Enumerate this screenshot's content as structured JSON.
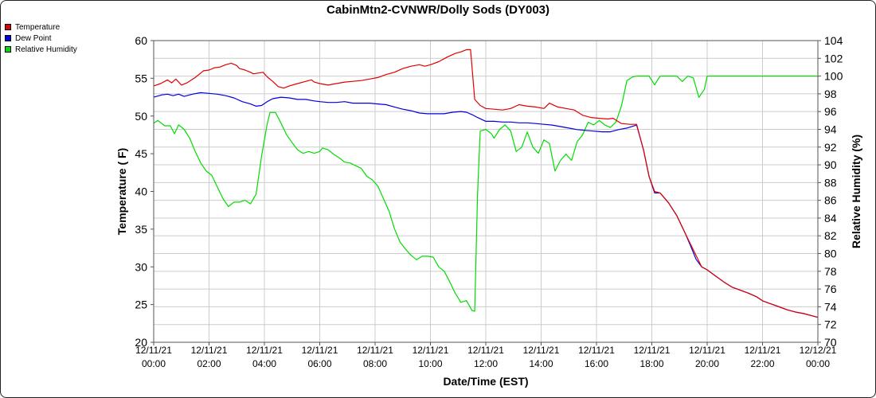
{
  "chart_data": {
    "type": "line",
    "title": "CabinMtn2-CVNWR/Dolly Sods (DY003)",
    "xlabel": "Date/Time (EST)",
    "ylabel": "Temperature ( F)",
    "y2label": "Relative Humidity (%)",
    "xlim": [
      0,
      24
    ],
    "ylim": [
      20,
      60
    ],
    "y2lim": [
      70,
      104
    ],
    "yticks": [
      "20",
      "25",
      "30",
      "35",
      "40",
      "45",
      "50",
      "55",
      "60"
    ],
    "y2ticks": [
      "70",
      "72",
      "74",
      "76",
      "78",
      "80",
      "82",
      "84",
      "86",
      "88",
      "90",
      "92",
      "94",
      "96",
      "98",
      "100",
      "102",
      "104"
    ],
    "xtick_values": [
      0,
      2,
      4,
      6,
      8,
      10,
      12,
      14,
      16,
      18,
      20,
      22,
      24
    ],
    "xticks": [
      {
        "date": "12/11/21",
        "time": "00:00"
      },
      {
        "date": "12/11/21",
        "time": "02:00"
      },
      {
        "date": "12/11/21",
        "time": "04:00"
      },
      {
        "date": "12/11/21",
        "time": "06:00"
      },
      {
        "date": "12/11/21",
        "time": "08:00"
      },
      {
        "date": "12/11/21",
        "time": "10:00"
      },
      {
        "date": "12/11/21",
        "time": "12:00"
      },
      {
        "date": "12/11/21",
        "time": "14:00"
      },
      {
        "date": "12/11/21",
        "time": "16:00"
      },
      {
        "date": "12/11/21",
        "time": "18:00"
      },
      {
        "date": "12/11/21",
        "time": "20:00"
      },
      {
        "date": "12/11/21",
        "time": "22:00"
      },
      {
        "date": "12/12/21",
        "time": "00:00"
      }
    ],
    "grid": true,
    "legend": "top-left",
    "series": [
      {
        "name": "Temperature",
        "color": "#e00000",
        "axis": "left",
        "points": [
          [
            0,
            54.0
          ],
          [
            0.25,
            54.3
          ],
          [
            0.5,
            54.8
          ],
          [
            0.65,
            54.4
          ],
          [
            0.8,
            54.9
          ],
          [
            1.0,
            54.1
          ],
          [
            1.2,
            54.4
          ],
          [
            1.5,
            55.1
          ],
          [
            1.8,
            56.0
          ],
          [
            2.0,
            56.1
          ],
          [
            2.2,
            56.4
          ],
          [
            2.4,
            56.5
          ],
          [
            2.6,
            56.8
          ],
          [
            2.8,
            57.0
          ],
          [
            3.0,
            56.7
          ],
          [
            3.1,
            56.3
          ],
          [
            3.3,
            56.1
          ],
          [
            3.5,
            55.8
          ],
          [
            3.6,
            55.6
          ],
          [
            3.8,
            55.7
          ],
          [
            3.95,
            55.8
          ],
          [
            4.1,
            55.2
          ],
          [
            4.3,
            54.6
          ],
          [
            4.5,
            53.9
          ],
          [
            4.7,
            53.7
          ],
          [
            4.9,
            54.0
          ],
          [
            5.2,
            54.3
          ],
          [
            5.5,
            54.6
          ],
          [
            5.7,
            54.8
          ],
          [
            5.8,
            54.5
          ],
          [
            6.0,
            54.3
          ],
          [
            6.3,
            54.1
          ],
          [
            6.6,
            54.3
          ],
          [
            6.9,
            54.5
          ],
          [
            7.2,
            54.6
          ],
          [
            7.5,
            54.7
          ],
          [
            7.8,
            54.9
          ],
          [
            8.1,
            55.1
          ],
          [
            8.4,
            55.5
          ],
          [
            8.7,
            55.8
          ],
          [
            9.0,
            56.3
          ],
          [
            9.3,
            56.6
          ],
          [
            9.6,
            56.8
          ],
          [
            9.8,
            56.6
          ],
          [
            10.0,
            56.8
          ],
          [
            10.3,
            57.2
          ],
          [
            10.6,
            57.8
          ],
          [
            10.9,
            58.3
          ],
          [
            11.1,
            58.5
          ],
          [
            11.3,
            58.8
          ],
          [
            11.45,
            58.8
          ],
          [
            11.6,
            52.2
          ],
          [
            11.8,
            51.4
          ],
          [
            12.0,
            51.0
          ],
          [
            12.3,
            50.9
          ],
          [
            12.6,
            50.8
          ],
          [
            12.9,
            51.0
          ],
          [
            13.2,
            51.5
          ],
          [
            13.5,
            51.3
          ],
          [
            13.8,
            51.2
          ],
          [
            14.1,
            51.0
          ],
          [
            14.3,
            51.7
          ],
          [
            14.6,
            51.2
          ],
          [
            14.9,
            51.0
          ],
          [
            15.2,
            50.8
          ],
          [
            15.5,
            50.1
          ],
          [
            15.8,
            49.8
          ],
          [
            16.1,
            49.7
          ],
          [
            16.4,
            49.6
          ],
          [
            16.6,
            49.7
          ],
          [
            16.9,
            49.0
          ],
          [
            17.2,
            48.9
          ],
          [
            17.45,
            48.9
          ],
          [
            17.7,
            45.5
          ],
          [
            17.9,
            42.0
          ],
          [
            18.1,
            40.0
          ],
          [
            18.3,
            39.8
          ],
          [
            18.6,
            38.5
          ],
          [
            18.9,
            36.8
          ],
          [
            19.2,
            34.5
          ],
          [
            19.4,
            33.0
          ],
          [
            19.6,
            31.5
          ],
          [
            19.8,
            30.0
          ],
          [
            20.0,
            29.6
          ],
          [
            20.3,
            28.8
          ],
          [
            20.6,
            28.0
          ],
          [
            20.9,
            27.3
          ],
          [
            21.2,
            26.9
          ],
          [
            21.5,
            26.5
          ],
          [
            21.8,
            26.0
          ],
          [
            22.0,
            25.5
          ],
          [
            22.3,
            25.1
          ],
          [
            22.6,
            24.7
          ],
          [
            22.9,
            24.3
          ],
          [
            23.2,
            24.0
          ],
          [
            23.5,
            23.8
          ],
          [
            23.8,
            23.5
          ],
          [
            24.0,
            23.3
          ]
        ]
      },
      {
        "name": "Dew Point",
        "color": "#0000dd",
        "axis": "left",
        "points": [
          [
            0,
            52.5
          ],
          [
            0.3,
            52.8
          ],
          [
            0.5,
            52.9
          ],
          [
            0.7,
            52.7
          ],
          [
            0.9,
            52.9
          ],
          [
            1.1,
            52.6
          ],
          [
            1.4,
            52.9
          ],
          [
            1.7,
            53.1
          ],
          [
            2.0,
            53.0
          ],
          [
            2.3,
            52.9
          ],
          [
            2.6,
            52.7
          ],
          [
            2.9,
            52.4
          ],
          [
            3.2,
            51.9
          ],
          [
            3.5,
            51.6
          ],
          [
            3.7,
            51.3
          ],
          [
            3.9,
            51.4
          ],
          [
            4.1,
            51.9
          ],
          [
            4.3,
            52.3
          ],
          [
            4.6,
            52.5
          ],
          [
            4.9,
            52.4
          ],
          [
            5.2,
            52.2
          ],
          [
            5.5,
            52.2
          ],
          [
            5.8,
            52.0
          ],
          [
            6.0,
            51.9
          ],
          [
            6.3,
            51.8
          ],
          [
            6.6,
            51.8
          ],
          [
            6.9,
            51.9
          ],
          [
            7.2,
            51.7
          ],
          [
            7.5,
            51.7
          ],
          [
            7.8,
            51.7
          ],
          [
            8.1,
            51.6
          ],
          [
            8.4,
            51.5
          ],
          [
            8.7,
            51.2
          ],
          [
            9.0,
            50.9
          ],
          [
            9.3,
            50.7
          ],
          [
            9.6,
            50.4
          ],
          [
            9.9,
            50.3
          ],
          [
            10.2,
            50.3
          ],
          [
            10.5,
            50.3
          ],
          [
            10.8,
            50.5
          ],
          [
            11.1,
            50.6
          ],
          [
            11.3,
            50.5
          ],
          [
            11.5,
            50.2
          ],
          [
            11.7,
            49.8
          ],
          [
            12.0,
            49.3
          ],
          [
            12.3,
            49.3
          ],
          [
            12.6,
            49.2
          ],
          [
            12.9,
            49.2
          ],
          [
            13.2,
            49.1
          ],
          [
            13.5,
            49.1
          ],
          [
            13.8,
            49.0
          ],
          [
            14.1,
            48.9
          ],
          [
            14.4,
            48.8
          ],
          [
            14.7,
            48.6
          ],
          [
            15.0,
            48.4
          ],
          [
            15.3,
            48.2
          ],
          [
            15.6,
            48.1
          ],
          [
            15.9,
            48.0
          ],
          [
            16.2,
            47.9
          ],
          [
            16.5,
            47.9
          ],
          [
            16.8,
            48.2
          ],
          [
            17.1,
            48.4
          ],
          [
            17.45,
            48.8
          ],
          [
            17.7,
            45.5
          ],
          [
            17.9,
            42.0
          ],
          [
            18.1,
            39.8
          ],
          [
            18.3,
            39.8
          ],
          [
            18.6,
            38.5
          ],
          [
            18.9,
            36.8
          ],
          [
            19.2,
            34.5
          ],
          [
            19.4,
            32.8
          ],
          [
            19.6,
            31.0
          ],
          [
            19.8,
            30.0
          ],
          [
            20.0,
            29.6
          ],
          [
            20.3,
            28.8
          ],
          [
            20.6,
            28.0
          ],
          [
            20.9,
            27.3
          ],
          [
            21.2,
            26.9
          ],
          [
            21.5,
            26.5
          ],
          [
            21.8,
            26.0
          ],
          [
            22.0,
            25.5
          ],
          [
            22.3,
            25.1
          ],
          [
            22.6,
            24.7
          ],
          [
            22.9,
            24.3
          ],
          [
            23.2,
            24.0
          ],
          [
            23.5,
            23.8
          ],
          [
            23.8,
            23.5
          ],
          [
            24.0,
            23.3
          ]
        ]
      },
      {
        "name": "Relative Humidity",
        "color": "#00dd00",
        "axis": "right",
        "points": [
          [
            0,
            94.7
          ],
          [
            0.15,
            95.0
          ],
          [
            0.4,
            94.4
          ],
          [
            0.6,
            94.4
          ],
          [
            0.75,
            93.5
          ],
          [
            0.9,
            94.5
          ],
          [
            1.1,
            94.0
          ],
          [
            1.3,
            93.0
          ],
          [
            1.5,
            91.5
          ],
          [
            1.7,
            90.2
          ],
          [
            1.9,
            89.3
          ],
          [
            2.1,
            88.8
          ],
          [
            2.3,
            87.5
          ],
          [
            2.5,
            86.2
          ],
          [
            2.7,
            85.3
          ],
          [
            2.9,
            85.8
          ],
          [
            3.1,
            85.8
          ],
          [
            3.3,
            86.0
          ],
          [
            3.5,
            85.6
          ],
          [
            3.7,
            86.7
          ],
          [
            3.9,
            91.0
          ],
          [
            4.1,
            94.6
          ],
          [
            4.2,
            95.9
          ],
          [
            4.4,
            95.9
          ],
          [
            4.6,
            94.7
          ],
          [
            4.8,
            93.4
          ],
          [
            5.0,
            92.5
          ],
          [
            5.2,
            91.7
          ],
          [
            5.4,
            91.3
          ],
          [
            5.6,
            91.5
          ],
          [
            5.8,
            91.3
          ],
          [
            6.0,
            91.5
          ],
          [
            6.1,
            91.9
          ],
          [
            6.3,
            91.7
          ],
          [
            6.5,
            91.2
          ],
          [
            6.7,
            90.8
          ],
          [
            6.9,
            90.3
          ],
          [
            7.1,
            90.2
          ],
          [
            7.3,
            89.9
          ],
          [
            7.5,
            89.6
          ],
          [
            7.7,
            88.7
          ],
          [
            7.9,
            88.3
          ],
          [
            8.1,
            87.6
          ],
          [
            8.3,
            86.2
          ],
          [
            8.5,
            84.8
          ],
          [
            8.7,
            82.8
          ],
          [
            8.9,
            81.3
          ],
          [
            9.1,
            80.5
          ],
          [
            9.3,
            79.8
          ],
          [
            9.5,
            79.3
          ],
          [
            9.7,
            79.7
          ],
          [
            9.9,
            79.7
          ],
          [
            10.1,
            79.6
          ],
          [
            10.3,
            78.5
          ],
          [
            10.5,
            78.0
          ],
          [
            10.7,
            76.8
          ],
          [
            10.9,
            75.5
          ],
          [
            11.1,
            74.5
          ],
          [
            11.3,
            74.7
          ],
          [
            11.5,
            73.6
          ],
          [
            11.6,
            73.5
          ],
          [
            11.7,
            86.5
          ],
          [
            11.8,
            93.8
          ],
          [
            12.0,
            94.0
          ],
          [
            12.2,
            93.5
          ],
          [
            12.3,
            93.0
          ],
          [
            12.5,
            94.0
          ],
          [
            12.7,
            94.5
          ],
          [
            12.9,
            93.8
          ],
          [
            13.1,
            91.5
          ],
          [
            13.3,
            92.0
          ],
          [
            13.5,
            93.7
          ],
          [
            13.7,
            92.0
          ],
          [
            13.9,
            91.3
          ],
          [
            14.1,
            92.8
          ],
          [
            14.3,
            92.4
          ],
          [
            14.5,
            89.3
          ],
          [
            14.7,
            90.5
          ],
          [
            14.9,
            91.2
          ],
          [
            15.1,
            90.5
          ],
          [
            15.3,
            92.6
          ],
          [
            15.5,
            93.4
          ],
          [
            15.7,
            94.8
          ],
          [
            15.9,
            94.5
          ],
          [
            16.1,
            95.0
          ],
          [
            16.3,
            94.5
          ],
          [
            16.5,
            94.2
          ],
          [
            16.7,
            94.8
          ],
          [
            16.9,
            96.6
          ],
          [
            17.1,
            99.5
          ],
          [
            17.3,
            99.9
          ],
          [
            17.45,
            100.0
          ],
          [
            17.7,
            100.0
          ],
          [
            17.9,
            100.0
          ],
          [
            18.1,
            99.0
          ],
          [
            18.3,
            100.0
          ],
          [
            18.6,
            100.0
          ],
          [
            18.9,
            100.0
          ],
          [
            19.1,
            99.4
          ],
          [
            19.3,
            100.0
          ],
          [
            19.5,
            99.8
          ],
          [
            19.7,
            97.6
          ],
          [
            19.9,
            98.5
          ],
          [
            20.0,
            100.0
          ],
          [
            20.5,
            100.0
          ],
          [
            21.0,
            100.0
          ],
          [
            22.0,
            100.0
          ],
          [
            23.0,
            100.0
          ],
          [
            24.0,
            100.0
          ]
        ]
      }
    ]
  }
}
